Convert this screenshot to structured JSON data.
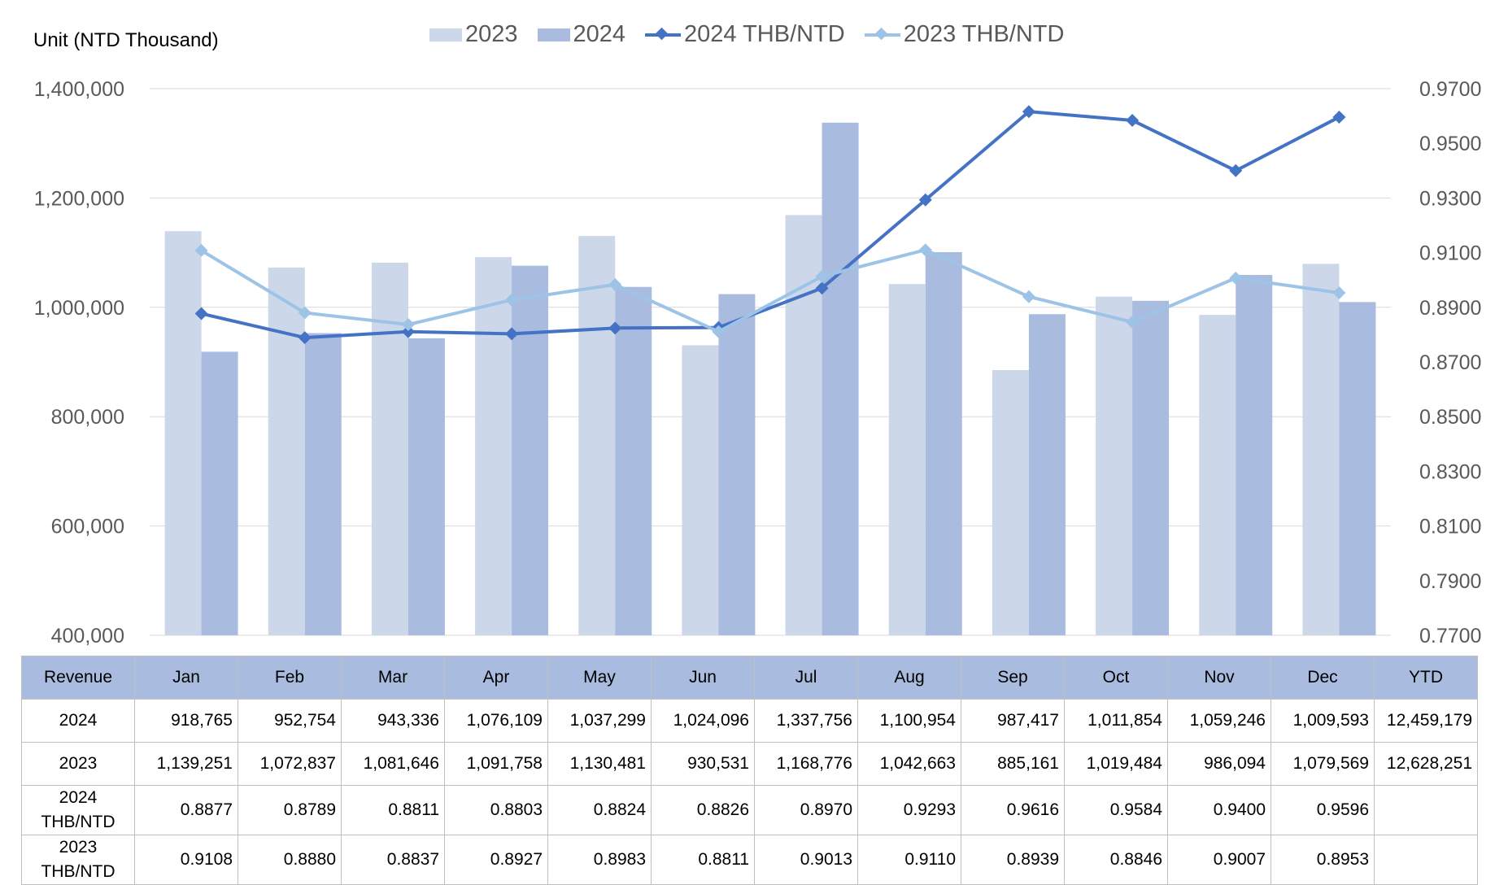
{
  "unit_label": "Unit (NTD  Thousand)",
  "legend": [
    {
      "label": "2023",
      "kind": "bar",
      "color": "#cdd7ea"
    },
    {
      "label": "2024",
      "kind": "bar",
      "color": "#a9bbdf"
    },
    {
      "label": "2024 THB/NTD",
      "kind": "line",
      "color": "#4472c4"
    },
    {
      "label": "2023 THB/NTD",
      "kind": "line",
      "color": "#9dc3e6"
    }
  ],
  "table": {
    "header": [
      "Revenue",
      "Jan",
      "Feb",
      "Mar",
      "Apr",
      "May",
      "Jun",
      "Jul",
      "Aug",
      "Sep",
      "Oct",
      "Nov",
      "Dec",
      "YTD"
    ],
    "rows": [
      {
        "label": "2024",
        "cells": [
          "918,765",
          "952,754",
          "943,336",
          "1,076,109",
          "1,037,299",
          "1,024,096",
          "1,337,756",
          "1,100,954",
          "987,417",
          "1,011,854",
          "1,059,246",
          "1,009,593",
          "12,459,179"
        ]
      },
      {
        "label": "2023",
        "cells": [
          "1,139,251",
          "1,072,837",
          "1,081,646",
          "1,091,758",
          "1,130,481",
          "930,531",
          "1,168,776",
          "1,042,663",
          "885,161",
          "1,019,484",
          "986,094",
          "1,079,569",
          "12,628,251"
        ]
      },
      {
        "label": "2024 THB/NTD",
        "cells": [
          "0.8877",
          "0.8789",
          "0.8811",
          "0.8803",
          "0.8824",
          "0.8826",
          "0.8970",
          "0.9293",
          "0.9616",
          "0.9584",
          "0.9400",
          "0.9596",
          ""
        ]
      },
      {
        "label": "2023 THB/NTD",
        "cells": [
          "0.9108",
          "0.8880",
          "0.8837",
          "0.8927",
          "0.8983",
          "0.8811",
          "0.9013",
          "0.9110",
          "0.8939",
          "0.8846",
          "0.9007",
          "0.8953",
          ""
        ]
      }
    ]
  },
  "chart_data": {
    "type": "bar",
    "categories": [
      "Jan",
      "Feb",
      "Mar",
      "Apr",
      "May",
      "Jun",
      "Jul",
      "Aug",
      "Sep",
      "Oct",
      "Nov",
      "Dec"
    ],
    "series": [
      {
        "name": "2023",
        "type": "bar",
        "axis": "left",
        "color": "#cdd7ea",
        "values": [
          1139251,
          1072837,
          1081646,
          1091758,
          1130481,
          930531,
          1168776,
          1042663,
          885161,
          1019484,
          986094,
          1079569
        ]
      },
      {
        "name": "2024",
        "type": "bar",
        "axis": "left",
        "color": "#a9bbdf",
        "values": [
          918765,
          952754,
          943336,
          1076109,
          1037299,
          1024096,
          1337756,
          1100954,
          987417,
          1011854,
          1059246,
          1009593
        ]
      },
      {
        "name": "2024 THB/NTD",
        "type": "line",
        "axis": "right",
        "color": "#4472c4",
        "values": [
          0.8877,
          0.8789,
          0.8811,
          0.8803,
          0.8824,
          0.8826,
          0.897,
          0.9293,
          0.9616,
          0.9584,
          0.94,
          0.9596
        ]
      },
      {
        "name": "2023 THB/NTD",
        "type": "line",
        "axis": "right",
        "color": "#9dc3e6",
        "values": [
          0.9108,
          0.888,
          0.8837,
          0.8927,
          0.8983,
          0.8811,
          0.9013,
          0.911,
          0.8939,
          0.8846,
          0.9007,
          0.8953
        ]
      }
    ],
    "y_left": {
      "min": 400000,
      "max": 1400000,
      "ticks": [
        "400,000",
        "600,000",
        "800,000",
        "1,000,000",
        "1,200,000",
        "1,400,000"
      ]
    },
    "y_right": {
      "min": 0.77,
      "max": 0.97,
      "ticks": [
        "0.7700",
        "0.7900",
        "0.8100",
        "0.8300",
        "0.8500",
        "0.8700",
        "0.8900",
        "0.9100",
        "0.9300",
        "0.9500",
        "0.9700"
      ]
    },
    "grid": true,
    "legend_position": "top"
  }
}
